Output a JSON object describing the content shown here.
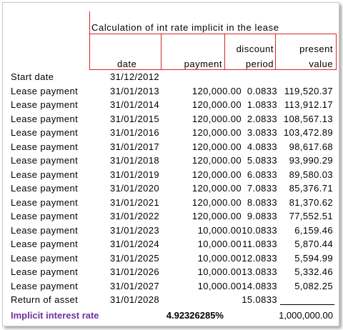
{
  "title": "Calculation of int rate implicit in the lease",
  "headers": {
    "date": "date",
    "payment": "payment",
    "period_line1": "discount",
    "period_line2": "period",
    "pv_line1": "present",
    "pv_line2": "value"
  },
  "rows": [
    {
      "label": "Start date",
      "date": "31/12/2012",
      "payment": "",
      "period": "",
      "pv": ""
    },
    {
      "label": "Lease payment",
      "date": "31/01/2013",
      "payment": "120,000.00",
      "period": "0.0833",
      "pv": "119,520.37"
    },
    {
      "label": "Lease payment",
      "date": "31/01/2014",
      "payment": "120,000.00",
      "period": "1.0833",
      "pv": "113,912.17"
    },
    {
      "label": "Lease payment",
      "date": "31/01/2015",
      "payment": "120,000.00",
      "period": "2.0833",
      "pv": "108,567.13"
    },
    {
      "label": "Lease payment",
      "date": "31/01/2016",
      "payment": "120,000.00",
      "period": "3.0833",
      "pv": "103,472.89"
    },
    {
      "label": "Lease payment",
      "date": "31/01/2017",
      "payment": "120,000.00",
      "period": "4.0833",
      "pv": "98,617.68"
    },
    {
      "label": "Lease payment",
      "date": "31/01/2018",
      "payment": "120,000.00",
      "period": "5.0833",
      "pv": "93,990.29"
    },
    {
      "label": "Lease payment",
      "date": "31/01/2019",
      "payment": "120,000.00",
      "period": "6.0833",
      "pv": "89,580.03"
    },
    {
      "label": "Lease payment",
      "date": "31/01/2020",
      "payment": "120,000.00",
      "period": "7.0833",
      "pv": "85,376.71"
    },
    {
      "label": "Lease payment",
      "date": "31/01/2021",
      "payment": "120,000.00",
      "period": "8.0833",
      "pv": "81,370.62"
    },
    {
      "label": "Lease payment",
      "date": "31/01/2022",
      "payment": "120,000.00",
      "period": "9.0833",
      "pv": "77,552.51"
    },
    {
      "label": "Lease payment",
      "date": "31/01/2023",
      "payment": "10,000.00",
      "period": "10.0833",
      "pv": "6,159.46"
    },
    {
      "label": "Lease payment",
      "date": "31/01/2024",
      "payment": "10,000.00",
      "period": "11.0833",
      "pv": "5,870.44"
    },
    {
      "label": "Lease payment",
      "date": "31/01/2025",
      "payment": "10,000.00",
      "period": "12.0833",
      "pv": "5,594.99"
    },
    {
      "label": "Lease payment",
      "date": "31/01/2026",
      "payment": "10,000.00",
      "period": "13.0833",
      "pv": "5,332.46"
    },
    {
      "label": "Lease payment",
      "date": "31/01/2027",
      "payment": "10,000.00",
      "period": "14.0833",
      "pv": "5,082.25"
    },
    {
      "label": "Return of asset",
      "date": "31/01/2028",
      "payment": "",
      "period": "15.0833",
      "pv": ""
    }
  ],
  "summary": {
    "label": "Implicit interest rate",
    "rate": "4.92326285%",
    "total": "1,000,000.00"
  },
  "colors": {
    "border": "#d9262b",
    "label_accent": "#7030a0"
  }
}
